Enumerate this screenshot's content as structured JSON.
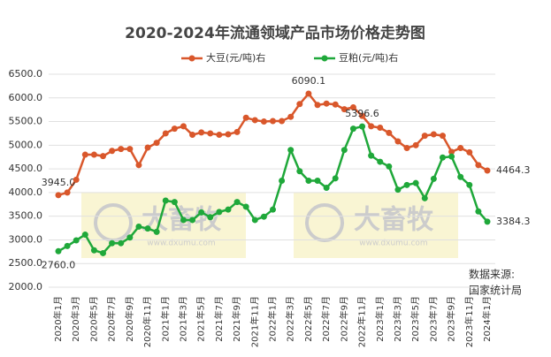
{
  "chart_data": {
    "type": "line",
    "title": "2020-2024年流通领域产品市场价格走势图",
    "categories": [
      "2020年1月",
      null,
      "2020年3月",
      null,
      "2020年5月",
      null,
      "2020年7月",
      null,
      "2020年9月",
      null,
      "2020年11月",
      null,
      "2021年1月",
      null,
      "2021年3月",
      null,
      "2021年5月",
      null,
      "2021年7月",
      null,
      "2021年9月",
      null,
      "2021年11月",
      null,
      "2022年1月",
      null,
      "2022年3月",
      null,
      "2022年5月",
      null,
      "2022年7月",
      null,
      "2022年9月",
      null,
      "2022年11月",
      null,
      "2023年1月",
      null,
      "2023年3月",
      null,
      "2023年5月",
      null,
      "2023年7月",
      null,
      "2023年9月",
      null,
      "2023年11月",
      null,
      "2024年1月"
    ],
    "series": [
      {
        "name": "大豆(元/吨)右",
        "color": "#d9572b",
        "values": [
          3945,
          4000,
          4270,
          4800,
          4800,
          4770,
          4880,
          4920,
          4920,
          4580,
          4950,
          5050,
          5250,
          5350,
          5400,
          5220,
          5270,
          5250,
          5220,
          5230,
          5280,
          5580,
          5530,
          5500,
          5510,
          5510,
          5600,
          5870,
          6090.1,
          5850,
          5880,
          5860,
          5760,
          5800,
          5620,
          5400,
          5370,
          5260,
          5080,
          4940,
          5000,
          5200,
          5230,
          5200,
          4860,
          4940,
          4850,
          4580,
          4464.3
        ],
        "value_labels": [
          "3945.0",
          null,
          null,
          null,
          null,
          null,
          null,
          null,
          null,
          null,
          null,
          null,
          null,
          null,
          null,
          null,
          null,
          null,
          null,
          null,
          null,
          null,
          null,
          null,
          null,
          null,
          null,
          null,
          "6090.1",
          null,
          null,
          null,
          null,
          null,
          null,
          null,
          null,
          null,
          null,
          null,
          null,
          null,
          null,
          null,
          null,
          null,
          null,
          null,
          "4464.3"
        ]
      },
      {
        "name": "豆粕(元/吨)右",
        "color": "#1fa83a",
        "values": [
          2760,
          2870,
          2990,
          3110,
          2780,
          2720,
          2930,
          2930,
          3050,
          3280,
          3240,
          3170,
          3830,
          3800,
          3420,
          3420,
          3580,
          3480,
          3590,
          3640,
          3800,
          3700,
          3420,
          3490,
          3640,
          4250,
          4900,
          4450,
          4250,
          4250,
          4100,
          4300,
          4900,
          5350,
          5396.6,
          4780,
          4650,
          4550,
          4060,
          4160,
          4200,
          3880,
          4290,
          4740,
          4760,
          4330,
          4160,
          3600,
          3384.3
        ],
        "value_labels": [
          "2760.0",
          null,
          null,
          null,
          null,
          null,
          null,
          null,
          null,
          null,
          null,
          null,
          null,
          null,
          null,
          null,
          null,
          null,
          null,
          null,
          null,
          null,
          null,
          null,
          null,
          null,
          null,
          null,
          null,
          null,
          null,
          null,
          null,
          null,
          "5396.6",
          null,
          null,
          null,
          null,
          null,
          null,
          null,
          null,
          null,
          null,
          null,
          null,
          null,
          "3384.3"
        ]
      }
    ],
    "ylim": [
      2000,
      6500
    ],
    "yticks": [
      {
        "value": 2000,
        "label": "2000.0"
      },
      {
        "value": 2500,
        "label": "2500.0"
      },
      {
        "value": 3000,
        "label": "3000.0"
      },
      {
        "value": 3500,
        "label": "3500.0"
      },
      {
        "value": 4000,
        "label": "4000.0"
      },
      {
        "value": 4500,
        "label": "4500.0"
      },
      {
        "value": 5000,
        "label": "5000.0"
      },
      {
        "value": 5500,
        "label": "5500.0"
      },
      {
        "value": 6000,
        "label": "6000.0"
      },
      {
        "value": 6500,
        "label": "6500.0"
      }
    ],
    "source": [
      "数据来源:",
      "国家统计局"
    ],
    "watermark": {
      "brand": "大畜牧",
      "url": "www.dxumu.com"
    }
  }
}
